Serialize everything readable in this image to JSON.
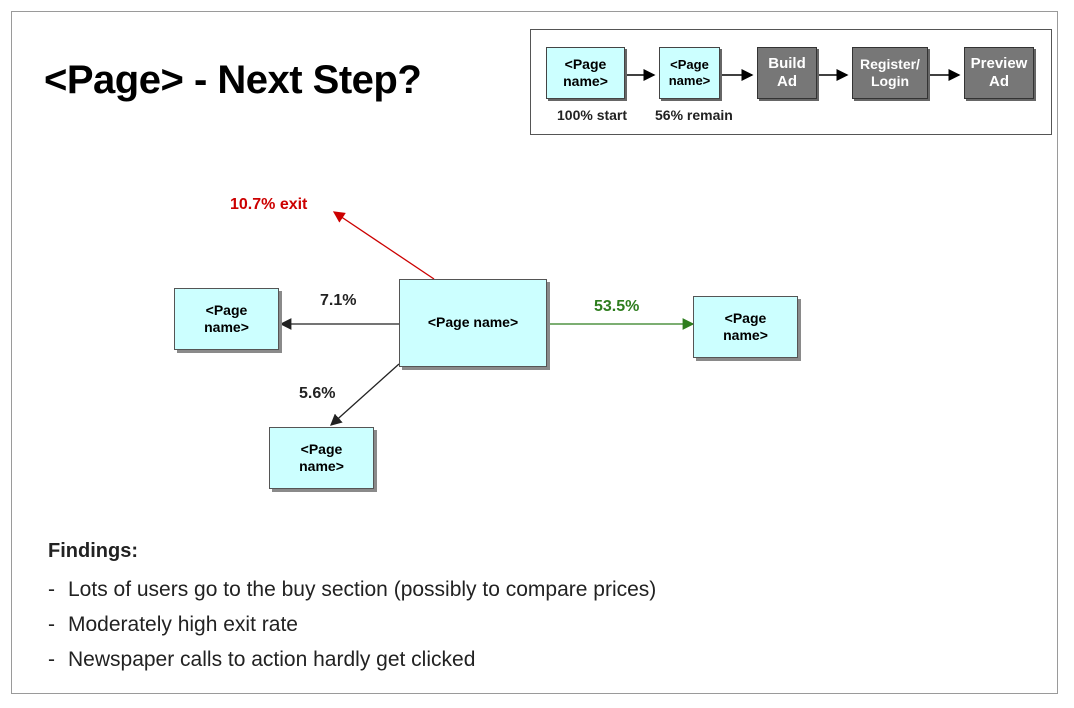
{
  "title": "<Page> - Next Step?",
  "flow": {
    "steps": [
      {
        "label_line1": "<Page",
        "label_line2": "name>",
        "style": "light",
        "caption": "100% start"
      },
      {
        "label_line1": "<Page",
        "label_line2": "name>",
        "style": "light",
        "caption": "56% remain"
      },
      {
        "label_line1": "Build",
        "label_line2": "Ad",
        "style": "dark"
      },
      {
        "label_line1": "Register/",
        "label_line2": "Login",
        "style": "dark"
      },
      {
        "label_line1": "Preview",
        "label_line2": "Ad",
        "style": "dark"
      }
    ]
  },
  "diagram": {
    "center": {
      "label": "<Page name>"
    },
    "left": {
      "label_line1": "<Page",
      "label_line2": "name>"
    },
    "right": {
      "label_line1": "<Page",
      "label_line2": "name>"
    },
    "bottom": {
      "label_line1": "<Page",
      "label_line2": "name>"
    },
    "edges": {
      "exit": {
        "label": "10.7% exit",
        "color": "#cc0000"
      },
      "left": {
        "label": "7.1%",
        "color": "#222222"
      },
      "right": {
        "label": "53.5%",
        "color": "#2e7d1e"
      },
      "bottom": {
        "label": "5.6%",
        "color": "#222222"
      }
    }
  },
  "findings": {
    "title": "Findings:",
    "items": [
      "Lots of users go to the buy section (possibly to compare prices)",
      "Moderately high exit rate",
      "Newspaper calls to action hardly get clicked"
    ]
  }
}
